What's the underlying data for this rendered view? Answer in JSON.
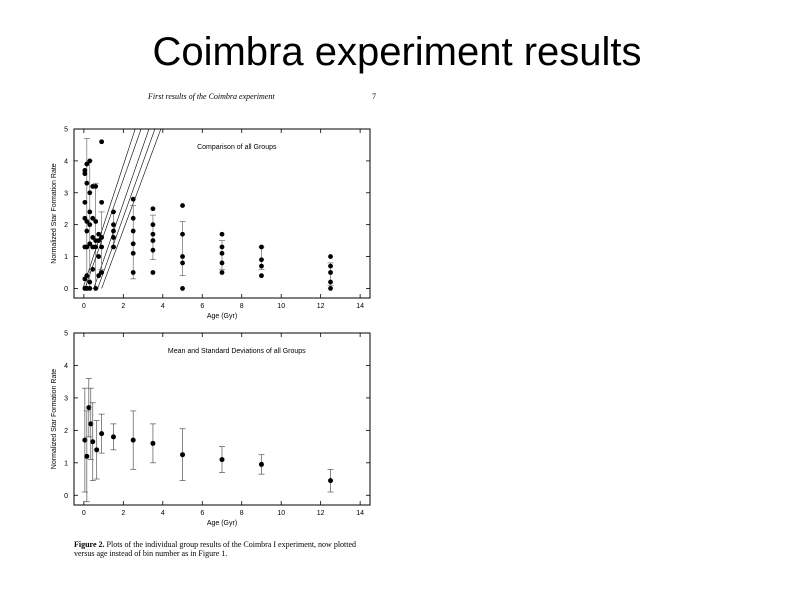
{
  "slide": {
    "title": "Coimbra experiment results"
  },
  "doc": {
    "header": "First results of the Coimbra experiment",
    "page_number": "7",
    "caption_label": "Figure 2.",
    "caption_text": "Plots of the individual group results of the Coimbra I experiment, now plotted versus age instead of bin number as in Figure 1."
  },
  "chart_data": [
    {
      "type": "scatter",
      "title": "Comparison of all Groups",
      "xlabel": "Age (Gyr)",
      "ylabel": "Normalized Star Formation Rate",
      "xlim": [
        -0.5,
        14.5
      ],
      "ylim": [
        -0.3,
        5
      ],
      "xticks": [
        0,
        2,
        4,
        6,
        8,
        10,
        12,
        14
      ],
      "yticks": [
        0,
        1,
        2,
        3,
        4,
        5
      ],
      "grid": false,
      "series": [
        {
          "points": [
            [
              0.05,
              0
            ],
            [
              0.05,
              0.3
            ],
            [
              0.05,
              1.3
            ],
            [
              0.05,
              2.2
            ],
            [
              0.05,
              2.7
            ],
            [
              0.05,
              3.6
            ],
            [
              0.05,
              3.7
            ],
            [
              0.15,
              0
            ],
            [
              0.15,
              0.4
            ],
            [
              0.15,
              1.3
            ],
            [
              0.15,
              1.8
            ],
            [
              0.15,
              2.1
            ],
            [
              0.15,
              3.3
            ],
            [
              0.15,
              3.9
            ],
            [
              0.3,
              0
            ],
            [
              0.3,
              0.2
            ],
            [
              0.3,
              1.4
            ],
            [
              0.3,
              2.0
            ],
            [
              0.3,
              2.4
            ],
            [
              0.3,
              3.0
            ],
            [
              0.3,
              4.0
            ],
            [
              0.45,
              0.6
            ],
            [
              0.45,
              1.3
            ],
            [
              0.45,
              1.6
            ],
            [
              0.45,
              2.2
            ],
            [
              0.45,
              3.2
            ],
            [
              0.6,
              0
            ],
            [
              0.6,
              1.3
            ],
            [
              0.6,
              1.5
            ],
            [
              0.6,
              2.1
            ],
            [
              0.6,
              3.2
            ],
            [
              0.75,
              0.4
            ],
            [
              0.75,
              1.0
            ],
            [
              0.75,
              1.5
            ],
            [
              0.75,
              1.7
            ],
            [
              0.9,
              0.5
            ],
            [
              0.9,
              1.3
            ],
            [
              0.9,
              1.6
            ],
            [
              0.9,
              2.7
            ],
            [
              0.9,
              4.6
            ],
            [
              1.5,
              1.3
            ],
            [
              1.5,
              1.6
            ],
            [
              1.5,
              1.8
            ],
            [
              1.5,
              2.0
            ],
            [
              1.5,
              2.4
            ],
            [
              2.5,
              0.5
            ],
            [
              2.5,
              1.1
            ],
            [
              2.5,
              1.4
            ],
            [
              2.5,
              1.8
            ],
            [
              2.5,
              2.2
            ],
            [
              2.5,
              2.8
            ],
            [
              3.5,
              0.5
            ],
            [
              3.5,
              1.2
            ],
            [
              3.5,
              1.5
            ],
            [
              3.5,
              1.7
            ],
            [
              3.5,
              2.0
            ],
            [
              3.5,
              2.5
            ],
            [
              5,
              0
            ],
            [
              5,
              0.8
            ],
            [
              5,
              1.0
            ],
            [
              5,
              1.7
            ],
            [
              5,
              2.6
            ],
            [
              7,
              0.5
            ],
            [
              7,
              0.8
            ],
            [
              7,
              1.1
            ],
            [
              7,
              1.3
            ],
            [
              7,
              1.7
            ],
            [
              9,
              0.4
            ],
            [
              9,
              0.7
            ],
            [
              9,
              0.9
            ],
            [
              9,
              1.3
            ],
            [
              12.5,
              0
            ],
            [
              12.5,
              0.2
            ],
            [
              12.5,
              0.5
            ],
            [
              12.5,
              0.7
            ],
            [
              12.5,
              1.0
            ]
          ]
        }
      ]
    },
    {
      "type": "scatter",
      "title": "Mean and Standard Deviations of all Groups",
      "xlabel": "Age (Gyr)",
      "ylabel": "Normalized Star Formation Rate",
      "xlim": [
        -0.5,
        14.5
      ],
      "ylim": [
        -0.3,
        5
      ],
      "xticks": [
        0,
        2,
        4,
        6,
        8,
        10,
        12,
        14
      ],
      "yticks": [
        0,
        1,
        2,
        3,
        4,
        5
      ],
      "grid": false,
      "series": [
        {
          "points": [
            {
              "x": 0.05,
              "y": 1.7,
              "err": 1.6
            },
            {
              "x": 0.15,
              "y": 1.2,
              "err": 1.4
            },
            {
              "x": 0.25,
              "y": 2.7,
              "err": 0.9
            },
            {
              "x": 0.35,
              "y": 2.2,
              "err": 1.1
            },
            {
              "x": 0.45,
              "y": 1.65,
              "err": 1.2
            },
            {
              "x": 0.65,
              "y": 1.4,
              "err": 0.9
            },
            {
              "x": 0.9,
              "y": 1.9,
              "err": 0.6
            },
            {
              "x": 1.5,
              "y": 1.8,
              "err": 0.4
            },
            {
              "x": 2.5,
              "y": 1.7,
              "err": 0.9
            },
            {
              "x": 3.5,
              "y": 1.6,
              "err": 0.6
            },
            {
              "x": 5,
              "y": 1.25,
              "err": 0.8
            },
            {
              "x": 7,
              "y": 1.1,
              "err": 0.4
            },
            {
              "x": 9,
              "y": 0.95,
              "err": 0.3
            },
            {
              "x": 12.5,
              "y": 0.45,
              "err": 0.35
            }
          ]
        }
      ]
    }
  ]
}
